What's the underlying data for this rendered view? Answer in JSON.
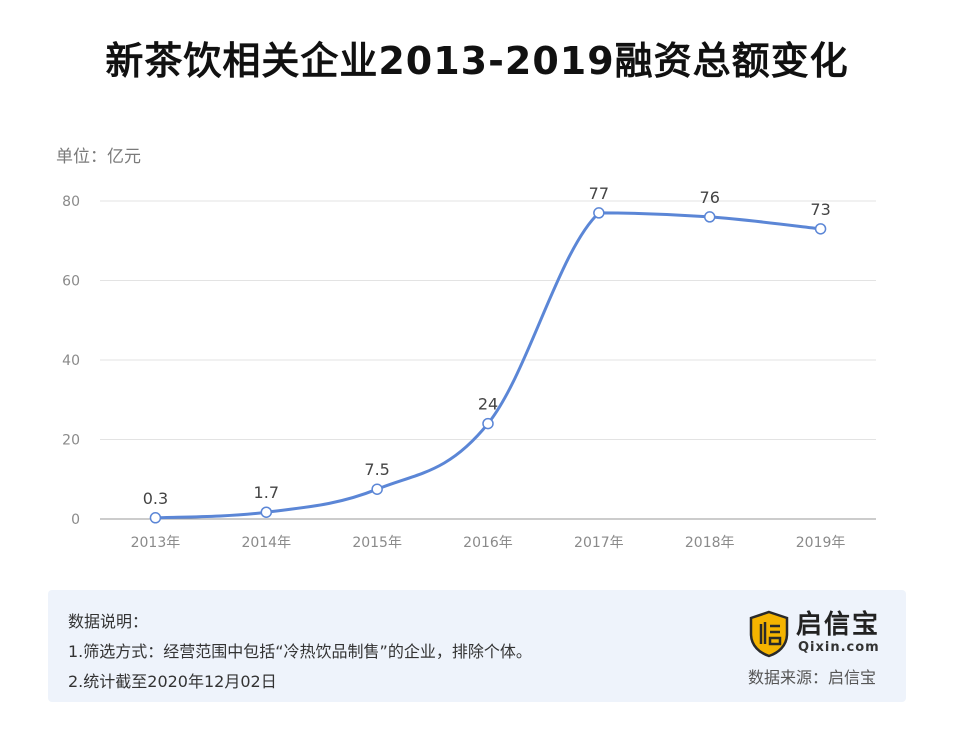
{
  "chart_data": {
    "type": "line",
    "title": "新茶饮相关企业2013-2019融资总额变化",
    "unit_label": "单位：亿元",
    "categories": [
      "2013年",
      "2014年",
      "2015年",
      "2016年",
      "2017年",
      "2018年",
      "2019年"
    ],
    "series": [
      {
        "values": [
          0.3,
          1.7,
          7.5,
          24,
          77,
          76,
          73
        ]
      }
    ],
    "data_labels": [
      "0.3",
      "1.7",
      "7.5",
      "24",
      "77",
      "76",
      "73"
    ],
    "y_ticks": [
      0,
      20,
      40,
      60,
      80
    ],
    "ylim": [
      0,
      80
    ],
    "grid": true,
    "line_color": "#5b86d6",
    "grid_color": "#e3e3e3",
    "legend": "none"
  },
  "notes": {
    "heading": "数据说明：",
    "line1": "1.筛选方式：经营范围中包括“冷热饮品制售”的企业，排除个体。",
    "line2": "2.统计截至2020年12月02日"
  },
  "brand": {
    "name": "启信宝",
    "sub": "Qixin.com",
    "source": "数据来源：启信宝",
    "logo_color": "#f5b400",
    "logo_icon": "shield-logo-icon"
  }
}
